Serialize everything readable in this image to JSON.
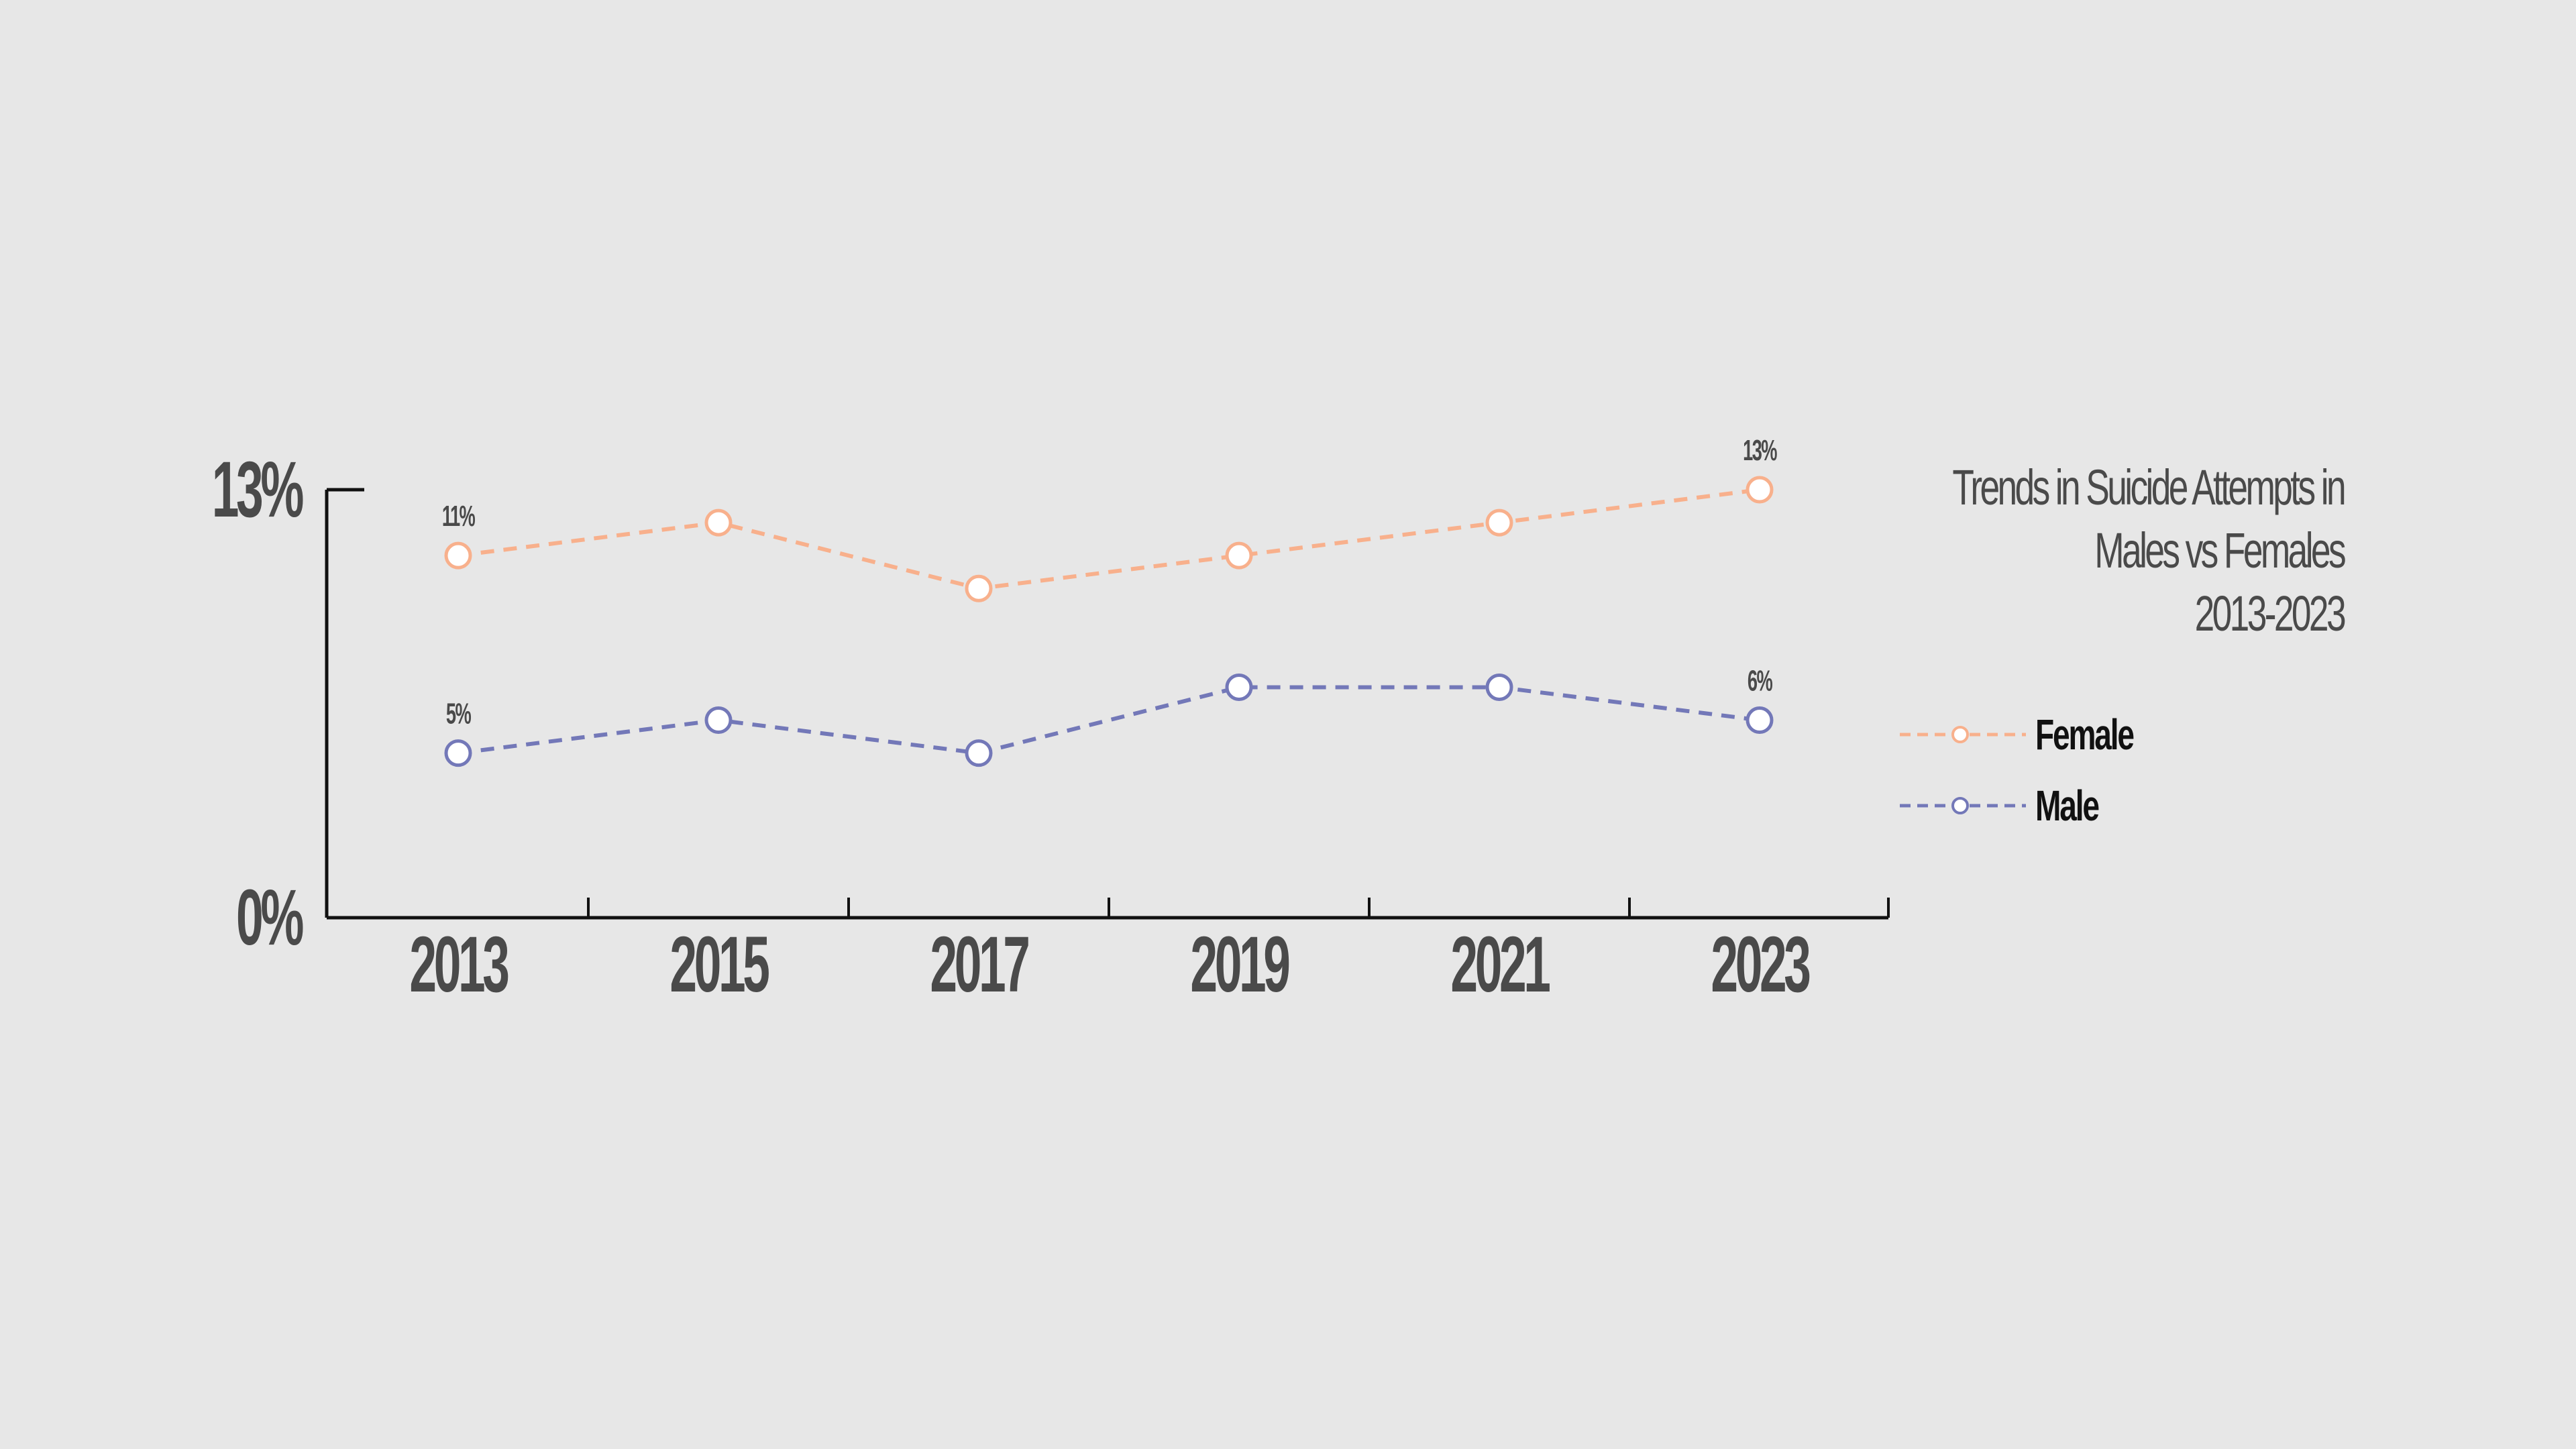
{
  "chart_data": {
    "type": "line",
    "title_lines": [
      "Trends in Suicide Attempts in",
      "Males vs Females",
      "2013-2023"
    ],
    "x": [
      "2013",
      "2015",
      "2017",
      "2019",
      "2021",
      "2023"
    ],
    "ylim": [
      0,
      13
    ],
    "ytick_labels": [
      "13%",
      "0%"
    ],
    "grid": false,
    "legend_position": "right",
    "series": [
      {
        "name": "Female",
        "color": "#f8b08c",
        "values": [
          11,
          12,
          10,
          11,
          12,
          13
        ],
        "data_labels": [
          {
            "index": 0,
            "text": "11%"
          },
          {
            "index": 5,
            "text": "13%"
          }
        ]
      },
      {
        "name": "Male",
        "color": "#7378b8",
        "values": [
          5,
          6,
          5,
          7,
          7,
          6
        ],
        "data_labels": [
          {
            "index": 0,
            "text": "5%"
          },
          {
            "index": 5,
            "text": "6%"
          }
        ]
      }
    ]
  }
}
